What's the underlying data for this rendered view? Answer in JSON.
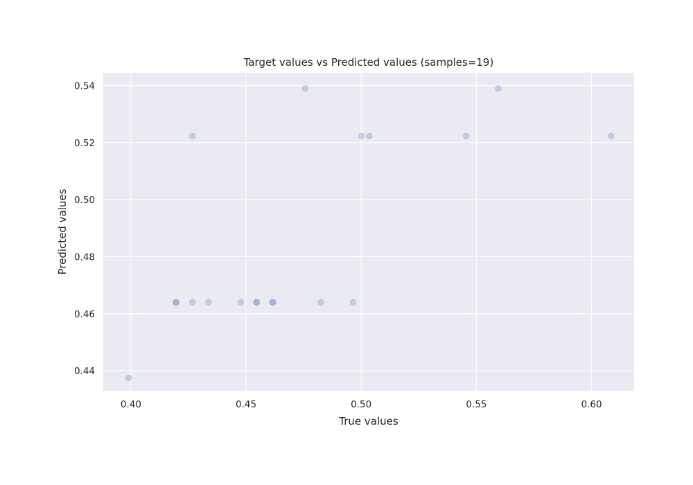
{
  "chart_data": {
    "type": "scatter",
    "title": "Target values vs Predicted values (samples=19)",
    "xlabel": "True values",
    "ylabel": "Predicted values",
    "xlim": [
      0.388,
      0.6185
    ],
    "ylim": [
      0.433,
      0.5445
    ],
    "xticks": [
      0.4,
      0.45,
      0.5,
      0.55,
      0.6
    ],
    "yticks": [
      0.44,
      0.46,
      0.48,
      0.5,
      0.52,
      0.54
    ],
    "xtick_labels": [
      "0.40",
      "0.45",
      "0.50",
      "0.55",
      "0.60"
    ],
    "ytick_labels": [
      "0.44",
      "0.46",
      "0.48",
      "0.50",
      "0.52",
      "0.54"
    ],
    "grid": true,
    "legend": "none",
    "colors": {
      "background": "#eaeaf2",
      "grid": "#ffffff",
      "marker": "#4c72b0",
      "marker_alpha": 0.25
    },
    "points": [
      {
        "x": 0.399,
        "y": 0.4375
      },
      {
        "x": 0.4195,
        "y": 0.464
      },
      {
        "x": 0.4197,
        "y": 0.464
      },
      {
        "x": 0.4267,
        "y": 0.464
      },
      {
        "x": 0.4268,
        "y": 0.5223
      },
      {
        "x": 0.4337,
        "y": 0.464
      },
      {
        "x": 0.4477,
        "y": 0.464
      },
      {
        "x": 0.4545,
        "y": 0.464
      },
      {
        "x": 0.4547,
        "y": 0.464
      },
      {
        "x": 0.4615,
        "y": 0.464
      },
      {
        "x": 0.4617,
        "y": 0.464
      },
      {
        "x": 0.4757,
        "y": 0.539
      },
      {
        "x": 0.4825,
        "y": 0.464
      },
      {
        "x": 0.4965,
        "y": 0.464
      },
      {
        "x": 0.5,
        "y": 0.5223
      },
      {
        "x": 0.5035,
        "y": 0.5223
      },
      {
        "x": 0.5455,
        "y": 0.5223
      },
      {
        "x": 0.5595,
        "y": 0.539
      },
      {
        "x": 0.6085,
        "y": 0.5223
      }
    ]
  }
}
